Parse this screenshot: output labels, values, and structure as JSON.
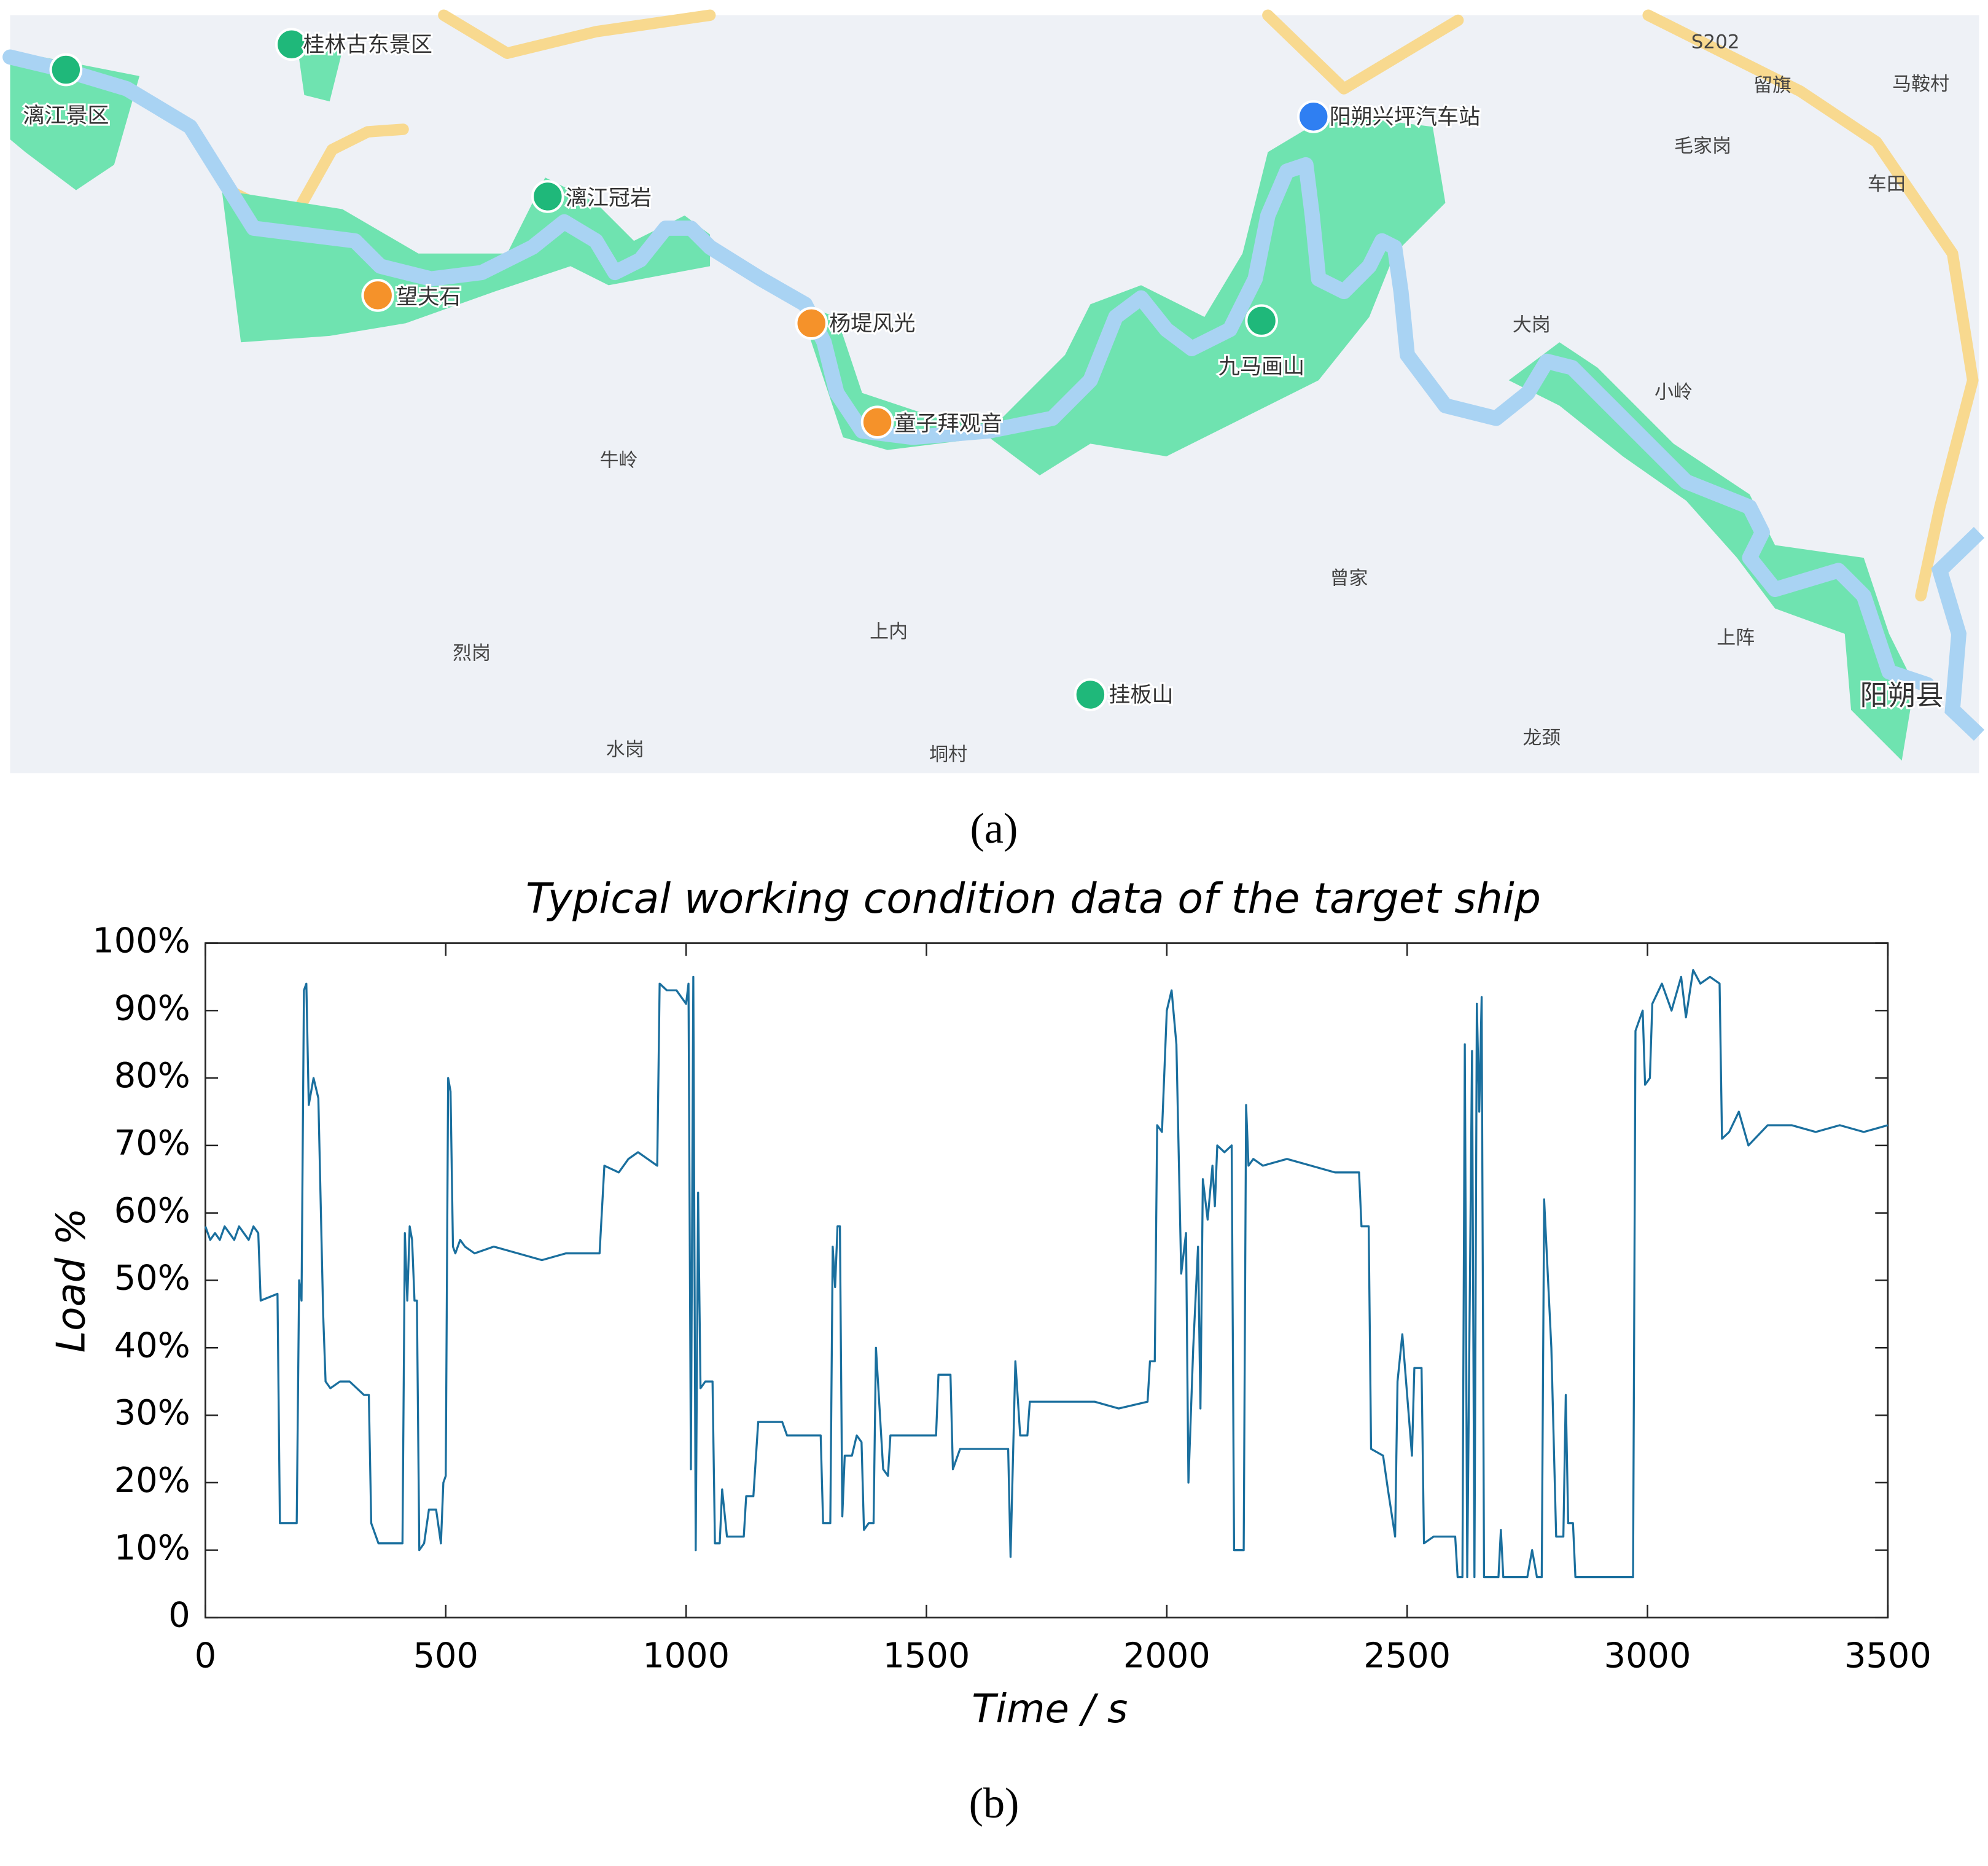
{
  "map": {
    "labels": [
      "漓江景区",
      "桂林古东景区",
      "漓江冠岩",
      "望夫石",
      "杨堤风光",
      "童子拜观音",
      "牛岭",
      "九马画山",
      "阳朔兴坪汽车站",
      "S202",
      "留旗",
      "马鞍村",
      "毛家岗",
      "车田",
      "大岗",
      "小岭",
      "曾家",
      "上内",
      "烈岗",
      "挂板山",
      "水岗",
      "垌村",
      "龙颈",
      "上阵",
      "阳朔县"
    ]
  },
  "captions": [
    "(a)",
    "(b)"
  ],
  "chart_data": {
    "type": "line",
    "title": "Typical working condition data of the target ship",
    "x_label": "Time / s",
    "y_label": "Load %",
    "color": "#1a6f9e",
    "xlim": [
      0,
      3500
    ],
    "xticks": [
      0,
      500,
      1000,
      1500,
      2000,
      2500,
      3000,
      3500
    ],
    "ylim": [
      0,
      100
    ],
    "yticks": [
      0,
      {
        "value": 10,
        "label": "10%"
      },
      {
        "value": 20,
        "label": "20%"
      },
      {
        "value": 30,
        "label": "30%"
      },
      {
        "value": 40,
        "label": "40%"
      },
      {
        "value": 50,
        "label": "50%"
      },
      {
        "value": 60,
        "label": "60%"
      },
      {
        "value": 70,
        "label": "70%"
      },
      {
        "value": 80,
        "label": "80%"
      },
      {
        "value": 90,
        "label": "90%"
      },
      {
        "value": 100,
        "label": "100%"
      }
    ],
    "x": [
      0,
      10,
      20,
      30,
      40,
      50,
      60,
      70,
      80,
      90,
      100,
      110,
      115,
      150,
      155,
      190,
      195,
      200,
      205,
      210,
      215,
      225,
      235,
      245,
      250,
      260,
      280,
      300,
      330,
      340,
      345,
      360,
      380,
      400,
      410,
      415,
      420,
      425,
      430,
      435,
      440,
      445,
      455,
      465,
      480,
      490,
      495,
      500,
      505,
      510,
      515,
      520,
      530,
      540,
      560,
      600,
      650,
      700,
      750,
      800,
      820,
      830,
      860,
      880,
      900,
      920,
      940,
      945,
      960,
      980,
      1000,
      1005,
      1010,
      1015,
      1020,
      1025,
      1030,
      1040,
      1055,
      1060,
      1070,
      1075,
      1085,
      1100,
      1120,
      1125,
      1140,
      1150,
      1180,
      1200,
      1210,
      1250,
      1280,
      1285,
      1300,
      1305,
      1310,
      1315,
      1320,
      1325,
      1330,
      1345,
      1355,
      1365,
      1370,
      1380,
      1390,
      1395,
      1400,
      1410,
      1420,
      1425,
      1450,
      1500,
      1520,
      1525,
      1550,
      1555,
      1570,
      1600,
      1650,
      1670,
      1675,
      1685,
      1695,
      1710,
      1715,
      1750,
      1800,
      1850,
      1900,
      1960,
      1965,
      1975,
      1980,
      1990,
      2000,
      2010,
      2020,
      2030,
      2040,
      2045,
      2055,
      2065,
      2070,
      2075,
      2085,
      2095,
      2100,
      2105,
      2120,
      2135,
      2140,
      2160,
      2165,
      2170,
      2180,
      2200,
      2250,
      2300,
      2350,
      2400,
      2405,
      2420,
      2425,
      2450,
      2460,
      2475,
      2480,
      2490,
      2500,
      2510,
      2515,
      2530,
      2535,
      2555,
      2580,
      2600,
      2605,
      2615,
      2620,
      2625,
      2635,
      2640,
      2645,
      2650,
      2655,
      2660,
      2670,
      2690,
      2695,
      2700,
      2750,
      2760,
      2770,
      2780,
      2785,
      2800,
      2810,
      2825,
      2830,
      2835,
      2845,
      2850,
      2900,
      2950,
      2970,
      2975,
      2990,
      2995,
      3005,
      3010,
      3030,
      3050,
      3070,
      3080,
      3095,
      3110,
      3130,
      3150,
      3155,
      3170,
      3190,
      3210,
      3250,
      3300,
      3350,
      3400,
      3450,
      3500
    ],
    "values": [
      58,
      56,
      57,
      56,
      58,
      57,
      56,
      58,
      57,
      56,
      58,
      57,
      47,
      48,
      14,
      14,
      50,
      47,
      93,
      94,
      76,
      80,
      77,
      45,
      35,
      34,
      35,
      35,
      33,
      33,
      14,
      11,
      11,
      11,
      11,
      57,
      47,
      58,
      56,
      47,
      47,
      10,
      11,
      16,
      16,
      11,
      20,
      21,
      80,
      78,
      55,
      54,
      56,
      55,
      54,
      55,
      54,
      53,
      54,
      54,
      54,
      67,
      66,
      68,
      69,
      68,
      67,
      94,
      93,
      93,
      91,
      94,
      22,
      95,
      10,
      63,
      34,
      35,
      35,
      11,
      11,
      19,
      12,
      12,
      12,
      18,
      18,
      29,
      29,
      29,
      27,
      27,
      27,
      14,
      14,
      55,
      49,
      58,
      58,
      15,
      24,
      24,
      27,
      26,
      13,
      14,
      14,
      40,
      34,
      22,
      21,
      27,
      27,
      27,
      27,
      36,
      36,
      22,
      25,
      25,
      25,
      25,
      9,
      38,
      27,
      27,
      32,
      32,
      32,
      32,
      31,
      32,
      38,
      38,
      73,
      72,
      90,
      93,
      85,
      51,
      57,
      20,
      40,
      55,
      31,
      65,
      59,
      67,
      61,
      70,
      69,
      70,
      10,
      10,
      76,
      67,
      68,
      67,
      68,
      67,
      66,
      66,
      58,
      58,
      25,
      24,
      19,
      12,
      35,
      42,
      33,
      24,
      37,
      37,
      11,
      12,
      12,
      12,
      6,
      6,
      85,
      6,
      84,
      6,
      91,
      75,
      92,
      6,
      6,
      6,
      13,
      6,
      6,
      10,
      6,
      6,
      62,
      40,
      12,
      12,
      33,
      14,
      14,
      6,
      6,
      6,
      6,
      87,
      90,
      79,
      80,
      91,
      94,
      90,
      95,
      89,
      96,
      94,
      95,
      94,
      71,
      72,
      75,
      70,
      73,
      73,
      72,
      73,
      72,
      73
    ]
  }
}
